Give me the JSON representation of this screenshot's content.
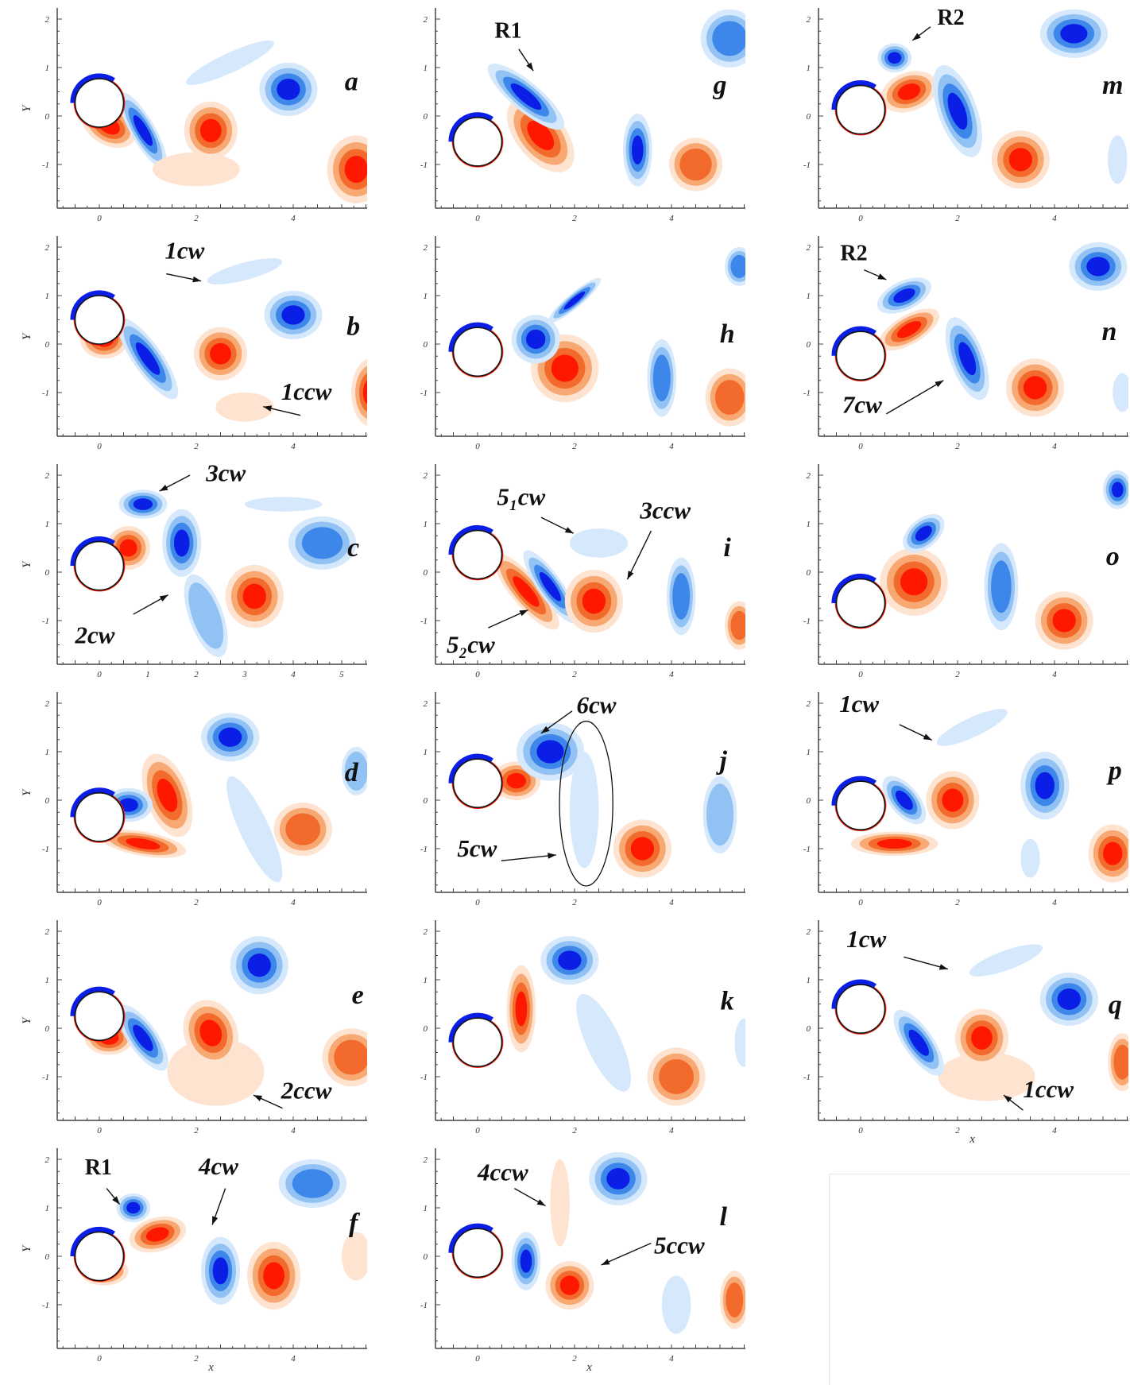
{
  "figure": {
    "axis": {
      "x_label": "x",
      "y_label": "Y",
      "x_ticks": [
        "0",
        "2",
        "4"
      ],
      "x_ticks_fine": [
        "0",
        "1",
        "2",
        "3",
        "4",
        "5"
      ],
      "y_ticks": [
        "-1",
        "0",
        "1",
        "2"
      ]
    },
    "colors": {
      "positive": [
        "#fde3d0",
        "#f8a872",
        "#f26b2c",
        "#ff1800"
      ],
      "negative": [
        "#d6e8fb",
        "#92c2f4",
        "#3d86ea",
        "#0a1ee6"
      ]
    },
    "panels": [
      {
        "id": "a",
        "label": "a",
        "annotations": []
      },
      {
        "id": "b",
        "label": "b",
        "annotations": [
          {
            "text": "1cw"
          },
          {
            "text": "1ccw"
          }
        ]
      },
      {
        "id": "c",
        "label": "c",
        "annotations": [
          {
            "text": "3cw"
          },
          {
            "text": "2cw"
          }
        ]
      },
      {
        "id": "d",
        "label": "d",
        "annotations": []
      },
      {
        "id": "e",
        "label": "e",
        "annotations": [
          {
            "text": "2ccw"
          }
        ]
      },
      {
        "id": "f",
        "label": "f",
        "annotations": [
          {
            "text": "R1"
          },
          {
            "text": "4cw"
          }
        ]
      },
      {
        "id": "g",
        "label": "g",
        "annotations": [
          {
            "text": "R1"
          }
        ]
      },
      {
        "id": "h",
        "label": "h",
        "annotations": []
      },
      {
        "id": "i",
        "label": "i",
        "annotations": [
          {
            "text": "5₁cw"
          },
          {
            "text": "3ccw"
          },
          {
            "text": "5₂cw"
          }
        ]
      },
      {
        "id": "j",
        "label": "j",
        "annotations": [
          {
            "text": "6cw"
          },
          {
            "text": "5cw"
          }
        ]
      },
      {
        "id": "k",
        "label": "k",
        "annotations": []
      },
      {
        "id": "l",
        "label": "l",
        "annotations": [
          {
            "text": "4ccw"
          },
          {
            "text": "5ccw"
          }
        ]
      },
      {
        "id": "m",
        "label": "m",
        "annotations": [
          {
            "text": "R2"
          }
        ]
      },
      {
        "id": "n",
        "label": "n",
        "annotations": [
          {
            "text": "R2"
          },
          {
            "text": "7cw"
          }
        ]
      },
      {
        "id": "o",
        "label": "o",
        "annotations": []
      },
      {
        "id": "p",
        "label": "p",
        "annotations": [
          {
            "text": "1cw"
          }
        ]
      },
      {
        "id": "q",
        "label": "q",
        "annotations": [
          {
            "text": "1cw"
          },
          {
            "text": "1ccw"
          }
        ]
      }
    ]
  }
}
